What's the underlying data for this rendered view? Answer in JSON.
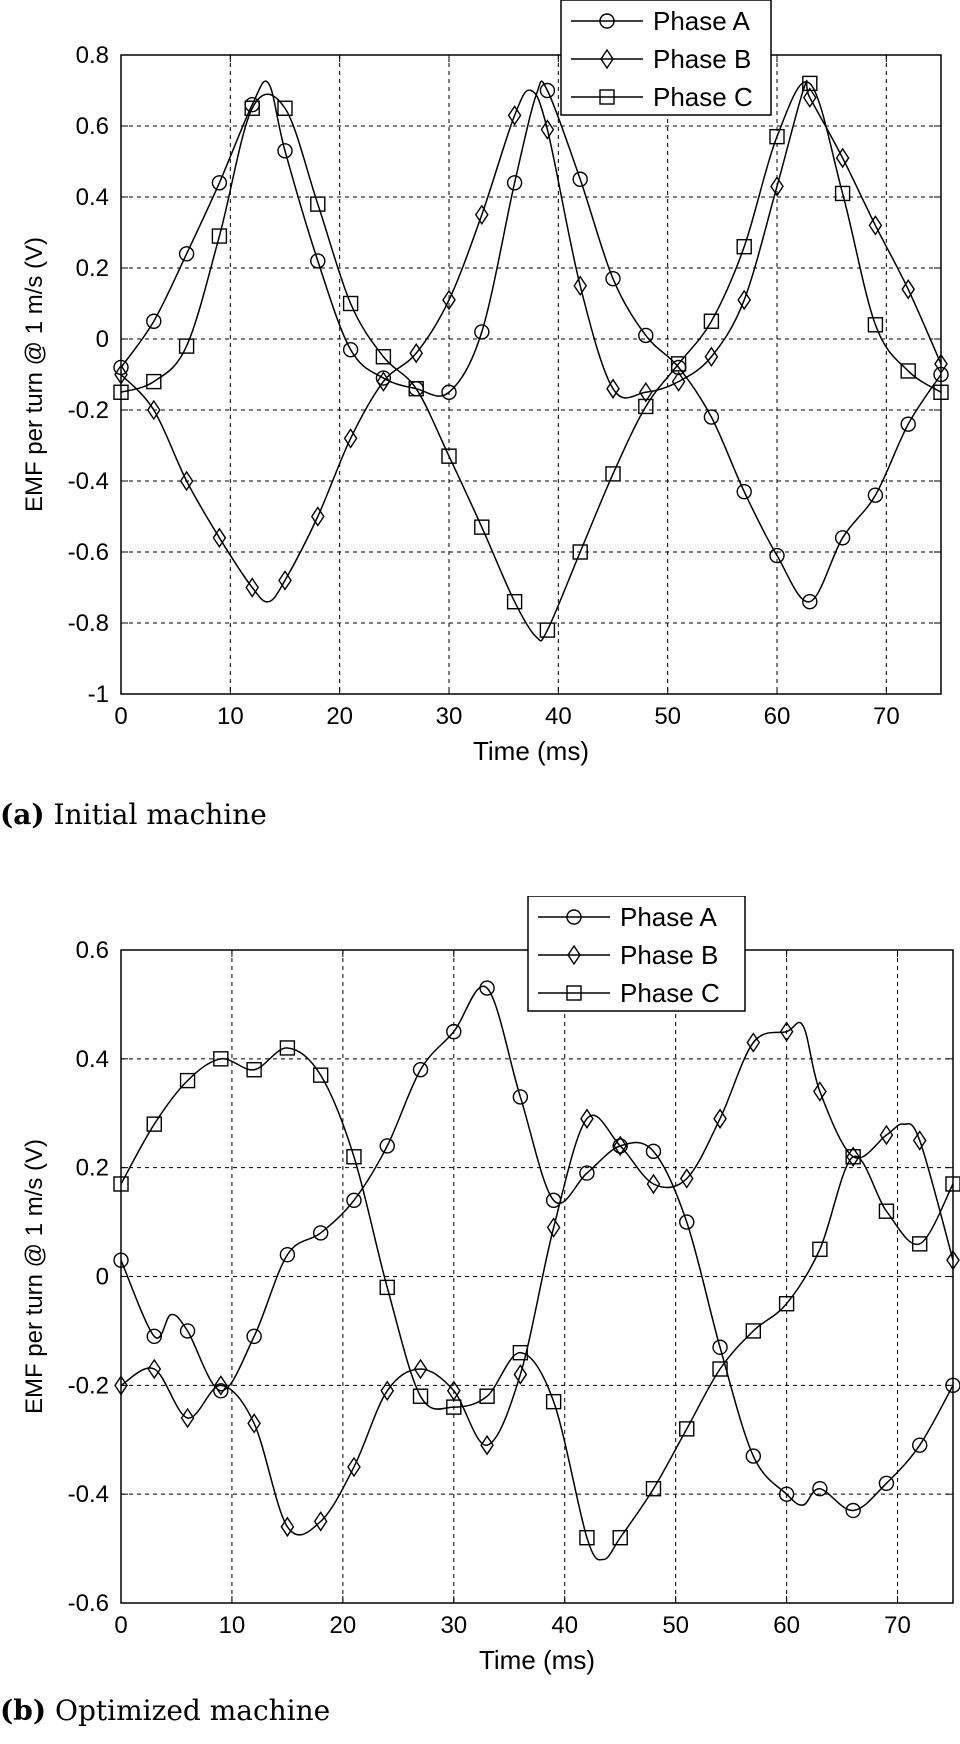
{
  "figure": {
    "caption_a_label": "(a)",
    "caption_a_text": "Initial machine",
    "caption_b_label": "(b)",
    "caption_b_text": "Optimized machine"
  },
  "chart_data": [
    {
      "type": "line",
      "title": "",
      "xlabel": "Time (ms)",
      "ylabel": "EMF per turn @ 1 m/s (V)",
      "xlim": [
        0,
        75
      ],
      "ylim": [
        -1,
        0.8
      ],
      "xticks": [
        0,
        10,
        20,
        30,
        40,
        50,
        60,
        70
      ],
      "yticks": [
        -1,
        -0.8,
        -0.6,
        -0.4,
        -0.2,
        0,
        0.2,
        0.4,
        0.6,
        0.8
      ],
      "ytick_labels": [
        "-1",
        "-0.8",
        "-0.6",
        "-0.4",
        "-0.2",
        "0",
        "0.2",
        "0.4",
        "0.6",
        "0.8"
      ],
      "grid": true,
      "legend": "top-right",
      "series": [
        {
          "name": "Phase A",
          "marker": "circle",
          "x": [
            0,
            3,
            6,
            9,
            12,
            13.5,
            15,
            18,
            21,
            24,
            27,
            30,
            33,
            36,
            38,
            39,
            42,
            45,
            48,
            51,
            54,
            57,
            60,
            63,
            66,
            69,
            72,
            75
          ],
          "y": [
            -0.08,
            0.05,
            0.24,
            0.44,
            0.66,
            0.72,
            0.53,
            0.22,
            -0.03,
            -0.11,
            -0.14,
            -0.15,
            0.02,
            0.44,
            0.69,
            0.7,
            0.45,
            0.17,
            0.01,
            -0.08,
            -0.22,
            -0.43,
            -0.61,
            -0.74,
            -0.56,
            -0.44,
            -0.24,
            -0.1
          ]
        },
        {
          "name": "Phase B",
          "marker": "diamond",
          "x": [
            0,
            3,
            6,
            9,
            12,
            13.5,
            15,
            18,
            21,
            24,
            27,
            30,
            33,
            36,
            37.5,
            39,
            42,
            45,
            48,
            51,
            54,
            57,
            60,
            62.5,
            63,
            66,
            69,
            72,
            75
          ],
          "y": [
            -0.1,
            -0.2,
            -0.4,
            -0.56,
            -0.7,
            -0.74,
            -0.68,
            -0.5,
            -0.28,
            -0.12,
            -0.04,
            0.11,
            0.35,
            0.63,
            0.7,
            0.59,
            0.15,
            -0.14,
            -0.15,
            -0.12,
            -0.05,
            0.11,
            0.43,
            0.71,
            0.68,
            0.51,
            0.32,
            0.14,
            -0.07
          ]
        },
        {
          "name": "Phase C",
          "marker": "square",
          "x": [
            0,
            3,
            6,
            9,
            12,
            15,
            18,
            21,
            24,
            27,
            30,
            33,
            36,
            38,
            39,
            42,
            45,
            48,
            51,
            54,
            57,
            60,
            63,
            66,
            69,
            72,
            75
          ],
          "y": [
            -0.15,
            -0.12,
            -0.02,
            0.29,
            0.65,
            0.65,
            0.38,
            0.1,
            -0.05,
            -0.14,
            -0.33,
            -0.53,
            -0.74,
            -0.84,
            -0.82,
            -0.6,
            -0.38,
            -0.19,
            -0.07,
            0.05,
            0.26,
            0.57,
            0.72,
            0.41,
            0.04,
            -0.09,
            -0.15
          ]
        }
      ]
    },
    {
      "type": "line",
      "title": "",
      "xlabel": "Time (ms)",
      "ylabel": "EMF per turn @ 1 m/s (V)",
      "xlim": [
        0,
        75
      ],
      "ylim": [
        -0.6,
        0.6
      ],
      "xticks": [
        0,
        10,
        20,
        30,
        40,
        50,
        60,
        70
      ],
      "yticks": [
        -0.6,
        -0.4,
        -0.2,
        0,
        0.2,
        0.4,
        0.6
      ],
      "ytick_labels": [
        "-0.6",
        "-0.4",
        "-0.2",
        "0",
        "0.2",
        "0.4",
        "0.6"
      ],
      "grid": true,
      "legend": "top-right",
      "series": [
        {
          "name": "Phase A",
          "marker": "circle",
          "x": [
            0,
            3,
            4.5,
            6,
            9,
            12,
            15,
            18,
            21,
            24,
            27,
            30,
            33,
            36,
            39,
            42,
            45,
            48,
            51,
            54,
            57,
            60,
            61.5,
            63,
            66,
            69,
            72,
            75
          ],
          "y": [
            0.03,
            -0.11,
            -0.07,
            -0.1,
            -0.21,
            -0.11,
            0.04,
            0.08,
            0.14,
            0.24,
            0.38,
            0.45,
            0.53,
            0.33,
            0.14,
            0.19,
            0.24,
            0.23,
            0.1,
            -0.13,
            -0.33,
            -0.4,
            -0.42,
            -0.39,
            -0.43,
            -0.38,
            -0.31,
            -0.2
          ]
        },
        {
          "name": "Phase B",
          "marker": "diamond",
          "x": [
            0,
            3,
            6,
            9,
            12,
            15,
            18,
            21,
            24,
            27,
            30,
            33,
            36,
            39,
            42,
            45,
            48,
            51,
            54,
            57,
            60,
            61.5,
            63,
            66,
            69,
            70.5,
            72,
            75
          ],
          "y": [
            -0.2,
            -0.17,
            -0.26,
            -0.2,
            -0.27,
            -0.46,
            -0.45,
            -0.35,
            -0.21,
            -0.17,
            -0.21,
            -0.31,
            -0.18,
            0.09,
            0.29,
            0.24,
            0.17,
            0.18,
            0.29,
            0.43,
            0.45,
            0.46,
            0.34,
            0.22,
            0.26,
            0.28,
            0.25,
            0.03
          ]
        },
        {
          "name": "Phase C",
          "marker": "square",
          "x": [
            0,
            3,
            6,
            9,
            12,
            15,
            18,
            21,
            24,
            27,
            30,
            33,
            36,
            39,
            42,
            43.5,
            45,
            48,
            51,
            54,
            57,
            60,
            63,
            66,
            69,
            72,
            75
          ],
          "y": [
            0.17,
            0.28,
            0.36,
            0.4,
            0.38,
            0.42,
            0.37,
            0.22,
            -0.02,
            -0.22,
            -0.24,
            -0.22,
            -0.14,
            -0.23,
            -0.48,
            -0.52,
            -0.48,
            -0.39,
            -0.28,
            -0.17,
            -0.1,
            -0.05,
            0.05,
            0.22,
            0.12,
            0.06,
            0.17
          ]
        }
      ]
    }
  ]
}
